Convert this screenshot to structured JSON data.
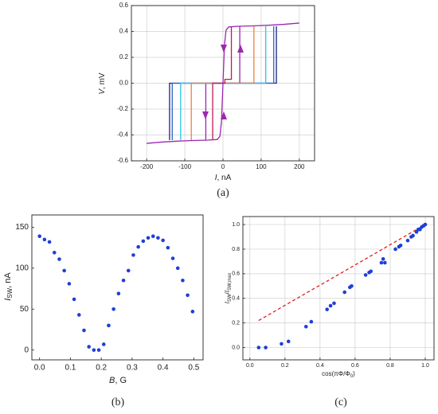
{
  "chart_data": [
    {
      "type": "line",
      "caption": "(a)",
      "xlabel": [
        "I",
        ", nA"
      ],
      "ylabel": [
        "V",
        ", mV"
      ],
      "xlim": [
        -240,
        240
      ],
      "ylim": [
        -0.6,
        0.6
      ],
      "xticks": [
        -200,
        -100,
        0,
        100,
        200
      ],
      "yticks": [
        -0.6,
        -0.4,
        -0.2,
        {
          "value": 0,
          "label": "0.0"
        },
        0.2,
        0.4,
        0.6
      ],
      "grid": true,
      "series": [
        {
          "color": "#9c27b0",
          "x": [
            -45,
            -45,
            44,
            44
          ],
          "values": [
            -0.44,
            0,
            0,
            0.44
          ]
        },
        {
          "color": "#1a237e",
          "x": [
            -140,
            -140,
            140,
            140
          ],
          "values": [
            -0.44,
            0,
            0,
            0.44
          ]
        },
        {
          "color": "#2962d4",
          "x": [
            -133,
            -133,
            133,
            133
          ],
          "values": [
            -0.44,
            0,
            0,
            0.44
          ]
        },
        {
          "color": "#29c6e6",
          "x": [
            -111,
            -111,
            112,
            112
          ],
          "values": [
            -0.44,
            0,
            0,
            0.44
          ]
        },
        {
          "color": "#f0803c",
          "x": [
            -83,
            -83,
            81,
            81
          ],
          "values": [
            -0.44,
            0,
            0,
            0.44
          ]
        },
        {
          "color": "#c2185b",
          "x": [
            -27,
            -27,
            5,
            5,
            22,
            22
          ],
          "values": [
            -0.44,
            0,
            0,
            0.03,
            0.03,
            0.44
          ]
        },
        {
          "color": "#9c27b0",
          "x": [
            -200,
            -160,
            -120,
            -80,
            -40,
            -15,
            -8,
            -4,
            0,
            4,
            8,
            15,
            40,
            80,
            120,
            160,
            200
          ],
          "values": [
            -0.465,
            -0.455,
            -0.448,
            -0.443,
            -0.44,
            -0.435,
            -0.41,
            -0.3,
            0,
            0.3,
            0.41,
            0.435,
            0.44,
            0.443,
            0.448,
            0.455,
            0.465
          ]
        }
      ]
    },
    {
      "type": "scatter",
      "caption": "(b)",
      "xlabel": [
        "B",
        ", G"
      ],
      "ylabel": [
        "I",
        "SW",
        ", nA"
      ],
      "xlim": [
        -0.025,
        0.53
      ],
      "ylim": [
        -12,
        165
      ],
      "xticks": [
        {
          "value": 0,
          "label": "0.0"
        },
        0.1,
        0.2,
        0.3,
        0.4,
        0.5
      ],
      "yticks": [
        0,
        50,
        100,
        150
      ],
      "grid": false,
      "color": "#1f3fd6",
      "x": [
        0,
        0.016,
        0.032,
        0.048,
        0.064,
        0.08,
        0.096,
        0.112,
        0.128,
        0.144,
        0.16,
        0.176,
        0.192,
        0.208,
        0.224,
        0.24,
        0.256,
        0.272,
        0.288,
        0.304,
        0.32,
        0.336,
        0.352,
        0.368,
        0.384,
        0.4,
        0.416,
        0.432,
        0.448,
        0.464,
        0.48,
        0.496
      ],
      "values": [
        139,
        135,
        132,
        119,
        111,
        97,
        81,
        62,
        43,
        24,
        4,
        0,
        0,
        7,
        30,
        50,
        69,
        85,
        97,
        116,
        126,
        133,
        137,
        139,
        137,
        134,
        125,
        112,
        100,
        85,
        67,
        47
      ]
    },
    {
      "type": "scatter",
      "caption": "(c)",
      "xlabel": [
        "cos(πΦ/Φ",
        "0",
        ")"
      ],
      "ylabel": [
        "I",
        "SW",
        "/",
        "I",
        "SW,max"
      ],
      "xlim": [
        -0.04,
        1.05
      ],
      "ylim": [
        -0.1,
        1.065
      ],
      "xticks": [
        {
          "value": 0,
          "label": "0.0"
        },
        0.2,
        0.4,
        0.6,
        0.8,
        {
          "value": 1,
          "label": "1.0"
        }
      ],
      "yticks": [
        {
          "value": 0,
          "label": "0.0"
        },
        0.2,
        0.4,
        0.6,
        0.8,
        {
          "value": 1,
          "label": "1.0"
        }
      ],
      "grid": true,
      "color": "#1f3fd6",
      "x": [
        0.05,
        0.09,
        0.18,
        0.22,
        0.32,
        0.35,
        0.44,
        0.46,
        0.48,
        0.54,
        0.57,
        0.58,
        0.66,
        0.68,
        0.69,
        0.75,
        0.76,
        0.77,
        0.83,
        0.85,
        0.86,
        0.9,
        0.92,
        0.93,
        0.95,
        0.96,
        0.97,
        0.98,
        0.99,
        1.0
      ],
      "values": [
        0,
        0,
        0.03,
        0.05,
        0.17,
        0.21,
        0.31,
        0.34,
        0.36,
        0.45,
        0.49,
        0.5,
        0.59,
        0.61,
        0.62,
        0.69,
        0.72,
        0.69,
        0.8,
        0.82,
        0.83,
        0.87,
        0.9,
        0.91,
        0.94,
        0.96,
        0.96,
        0.98,
        0.99,
        1.0
      ],
      "series": [
        {
          "color": "#e02020",
          "style": "dashed",
          "x": [
            0.05,
            1
          ],
          "values": [
            0.22,
            1
          ]
        }
      ]
    }
  ]
}
